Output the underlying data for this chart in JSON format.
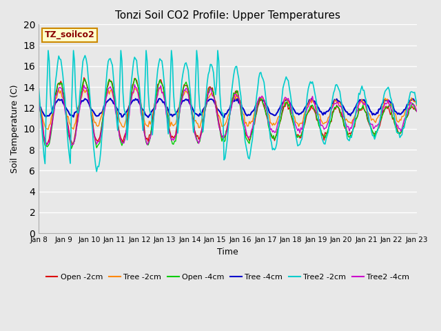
{
  "title": "Tonzi Soil CO2 Profile: Upper Temperatures",
  "xlabel": "Time",
  "ylabel": "Soil Temperature (C)",
  "ylim": [
    0,
    20
  ],
  "yticks": [
    0,
    2,
    4,
    6,
    8,
    10,
    12,
    14,
    16,
    18,
    20
  ],
  "x_labels": [
    "Jan 8",
    "Jan 9",
    "Jan 10",
    "Jan 11",
    "Jan 12",
    "Jan 13",
    "Jan 14",
    "Jan 15",
    "Jan 16",
    "Jan 17",
    "Jan 18",
    "Jan 19",
    "Jan 20",
    "Jan 21",
    "Jan 22",
    "Jan 23"
  ],
  "watermark_text": "TZ_soilco2",
  "watermark_color": "#8b0000",
  "watermark_bg": "#ffffcc",
  "watermark_border": "#cc8800",
  "bg_color": "#e8e8e8",
  "series_colors": {
    "Open -2cm": "#dd0000",
    "Tree -2cm": "#ff8800",
    "Open -4cm": "#00cc00",
    "Tree -4cm": "#0000cc",
    "Tree2 -2cm": "#00cccc",
    "Tree2 -4cm": "#cc00cc"
  },
  "series_linewidths": {
    "Open -2cm": 1.0,
    "Tree -2cm": 1.0,
    "Open -4cm": 1.0,
    "Tree -4cm": 1.5,
    "Tree2 -2cm": 1.2,
    "Tree2 -4cm": 1.0
  }
}
